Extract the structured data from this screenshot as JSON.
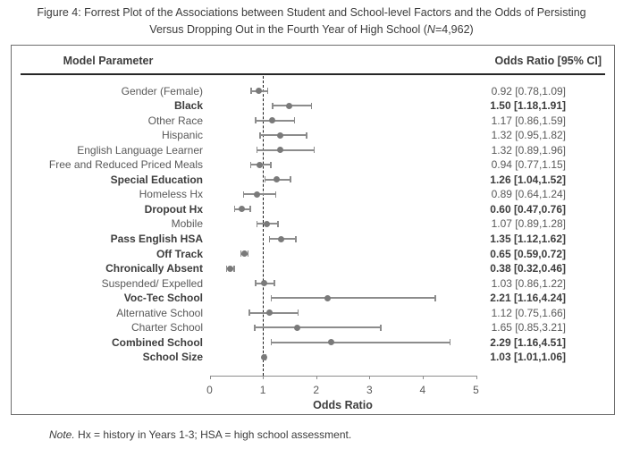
{
  "title": {
    "line1": "Figure 4: Forrest Plot of the Associations between Student and School-level Factors and the Odds of Persisting",
    "line2_prefix": "Versus Dropping Out in the Fourth Year of High School (",
    "n_italic": "N",
    "line2_suffix": "=4,962)"
  },
  "note": {
    "lead": "Note.",
    "text": " Hx = history in Years 1-3; HSA = high school assessment."
  },
  "colors": {
    "title": "#3b3b3b",
    "frame": "#6e6e6e",
    "divider": "#262626",
    "regular_text": "#595959",
    "bold_text": "#3d3d3d",
    "marker": "#7a7a7a",
    "ci": "#8c8c8c",
    "reference": "#1a1a1a",
    "axis": "#8c8c8c"
  },
  "chart_data": {
    "type": "scatter",
    "variant": "forest-plot",
    "orientation": "horizontal",
    "columns": {
      "parameter": "Model Parameter",
      "value": "Odds Ratio [95% CI]"
    },
    "xlabel": "Odds Ratio",
    "xlim": [
      0,
      5
    ],
    "xticks": [
      "0",
      "1",
      "2",
      "3",
      "4",
      "5"
    ],
    "reference_line_x": 1,
    "grid": false,
    "rows": [
      {
        "label": "Gender (Female)",
        "bold": false,
        "or": 0.92,
        "ci_low": 0.78,
        "ci_high": 1.09,
        "display": "0.92 [0.78,1.09]"
      },
      {
        "label": "Black",
        "bold": true,
        "or": 1.5,
        "ci_low": 1.18,
        "ci_high": 1.91,
        "display": "1.50 [1.18,1.91]"
      },
      {
        "label": "Other Race",
        "bold": false,
        "or": 1.17,
        "ci_low": 0.86,
        "ci_high": 1.59,
        "display": "1.17 [0.86,1.59]"
      },
      {
        "label": "Hispanic",
        "bold": false,
        "or": 1.32,
        "ci_low": 0.95,
        "ci_high": 1.82,
        "display": "1.32 [0.95,1.82]"
      },
      {
        "label": "English Language Learner",
        "bold": false,
        "or": 1.32,
        "ci_low": 0.89,
        "ci_high": 1.96,
        "display": "1.32 [0.89,1.96]"
      },
      {
        "label": "Free and Reduced Priced Meals",
        "bold": false,
        "or": 0.94,
        "ci_low": 0.77,
        "ci_high": 1.15,
        "display": "0.94 [0.77,1.15]"
      },
      {
        "label": "Special Education",
        "bold": true,
        "or": 1.26,
        "ci_low": 1.04,
        "ci_high": 1.52,
        "display": "1.26 [1.04,1.52]"
      },
      {
        "label": "Homeless Hx",
        "bold": false,
        "or": 0.89,
        "ci_low": 0.64,
        "ci_high": 1.24,
        "display": "0.89 [0.64,1.24]"
      },
      {
        "label": "Dropout Hx",
        "bold": true,
        "or": 0.6,
        "ci_low": 0.47,
        "ci_high": 0.76,
        "display": "0.60 [0.47,0.76]"
      },
      {
        "label": "Mobile",
        "bold": false,
        "or": 1.07,
        "ci_low": 0.89,
        "ci_high": 1.28,
        "display": "1.07 [0.89,1.28]"
      },
      {
        "label": "Pass English HSA",
        "bold": true,
        "or": 1.35,
        "ci_low": 1.12,
        "ci_high": 1.62,
        "display": "1.35 [1.12,1.62]"
      },
      {
        "label": "Off Track",
        "bold": true,
        "or": 0.65,
        "ci_low": 0.59,
        "ci_high": 0.72,
        "display": "0.65 [0.59,0.72]"
      },
      {
        "label": "Chronically Absent",
        "bold": true,
        "or": 0.38,
        "ci_low": 0.32,
        "ci_high": 0.46,
        "display": "0.38 [0.32,0.46]"
      },
      {
        "label": "Suspended/ Expelled",
        "bold": false,
        "or": 1.03,
        "ci_low": 0.86,
        "ci_high": 1.22,
        "display": "1.03 [0.86,1.22]"
      },
      {
        "label": "Voc-Tec School",
        "bold": true,
        "or": 2.21,
        "ci_low": 1.16,
        "ci_high": 4.24,
        "display": "2.21 [1.16,4.24]"
      },
      {
        "label": "Alternative School",
        "bold": false,
        "or": 1.12,
        "ci_low": 0.75,
        "ci_high": 1.66,
        "display": "1.12 [0.75,1.66]"
      },
      {
        "label": "Charter School",
        "bold": false,
        "or": 1.65,
        "ci_low": 0.85,
        "ci_high": 3.21,
        "display": "1.65 [0.85,3.21]"
      },
      {
        "label": "Combined School",
        "bold": true,
        "or": 2.29,
        "ci_low": 1.16,
        "ci_high": 4.51,
        "display": "2.29 [1.16,4.51]"
      },
      {
        "label": "School Size",
        "bold": true,
        "or": 1.03,
        "ci_low": 1.01,
        "ci_high": 1.06,
        "display": "1.03 [1.01,1.06]"
      }
    ]
  }
}
